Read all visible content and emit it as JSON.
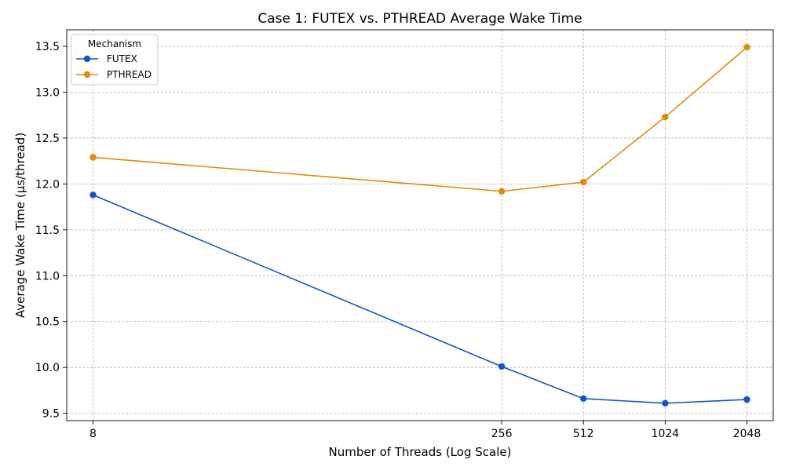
{
  "chart_data": {
    "type": "line",
    "title": "Case 1: FUTEX vs. PTHREAD Average Wake Time",
    "xlabel": "Number of Threads (Log Scale)",
    "ylabel": "Average Wake Time (μs/thread)",
    "x_scale": "log2",
    "x": [
      8,
      256,
      512,
      1024,
      2048
    ],
    "x_tick_labels": [
      "8",
      "256",
      "512",
      "1024",
      "2048"
    ],
    "xlim": [
      6.4,
      2560
    ],
    "ylim": [
      9.42,
      13.68
    ],
    "y_ticks": [
      9.5,
      10.0,
      10.5,
      11.0,
      11.5,
      12.0,
      12.5,
      13.0,
      13.5
    ],
    "y_tick_labels": [
      "9.5",
      "10.0",
      "10.5",
      "11.0",
      "11.5",
      "12.0",
      "12.5",
      "13.0",
      "13.5"
    ],
    "grid": true,
    "legend": {
      "title": "Mechanism",
      "placement": "top-left"
    },
    "series": [
      {
        "name": "FUTEX",
        "color": "#1155cc",
        "values": [
          11.88,
          10.01,
          9.66,
          9.61,
          9.65
        ]
      },
      {
        "name": "PTHREAD",
        "color": "#dd8c0b",
        "values": [
          12.29,
          11.92,
          12.02,
          12.73,
          13.49
        ]
      }
    ]
  }
}
